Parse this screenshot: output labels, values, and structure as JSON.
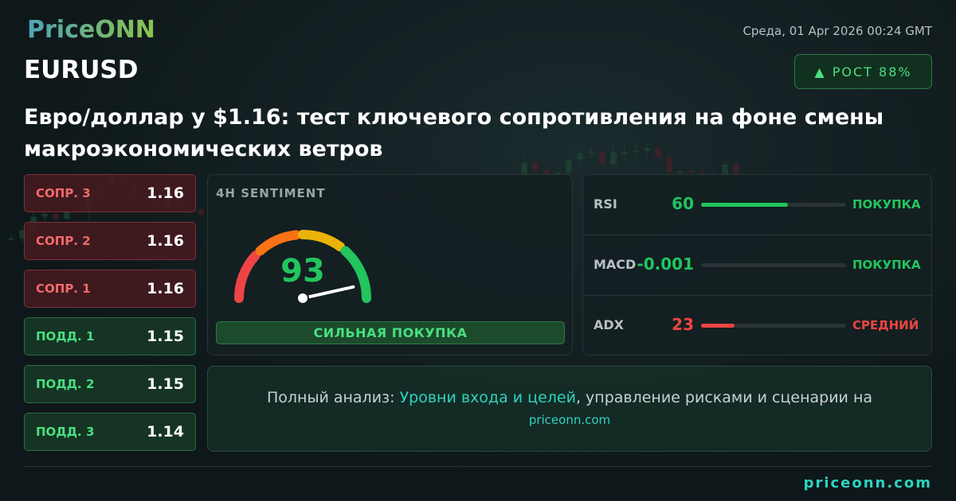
{
  "header": {
    "logo": "PriceONN",
    "date": "Среда, 01 Apr 2026 00:24 GMT",
    "symbol": "EURUSD",
    "badge": "РОСТ 88%",
    "title": "Евро/доллар у $1.16: тест ключевого сопротивления на фоне смены макроэкономических ветров"
  },
  "levels": [
    {
      "label": "СОПР. 3",
      "value": 1.16,
      "color": "#f26b6b"
    },
    {
      "label": "СОПР. 2",
      "value": 1.16,
      "color": "#f26b6b"
    },
    {
      "label": "СОПР. 1",
      "value": 1.16,
      "color": "#f26b6b"
    },
    {
      "label": "ПОДД. 1",
      "value": 1.15,
      "color": "#4ade80"
    },
    {
      "label": "ПОДД. 2",
      "value": 1.15,
      "color": "#4ade80"
    },
    {
      "label": "ПОДД. 3",
      "value": 1.14,
      "color": "#4ade80"
    }
  ],
  "sentiment": {
    "title": "4H SENTIMENT",
    "score": 93,
    "range": [
      0,
      100
    ],
    "verdict": "СИЛЬНАЯ ПОКУПКА"
  },
  "indicators": [
    {
      "name": "RSI",
      "value": 60,
      "signal": "ПОКУПКА",
      "color": "#22c55e"
    },
    {
      "name": "MACD",
      "value": -0.001,
      "signal": "ПОКУПКА",
      "color": "#22c55e"
    },
    {
      "name": "ADX",
      "value": 23,
      "signal": "СРЕДНИЙ",
      "color": "#ef4444"
    }
  ],
  "cta": {
    "prefix": "Полный анализ:",
    "link": "Уровни входа и целей",
    "suffix": ", управление рисками и сценарии на",
    "url": "priceonn.com"
  },
  "footer": {
    "url": "priceonn.com"
  }
}
